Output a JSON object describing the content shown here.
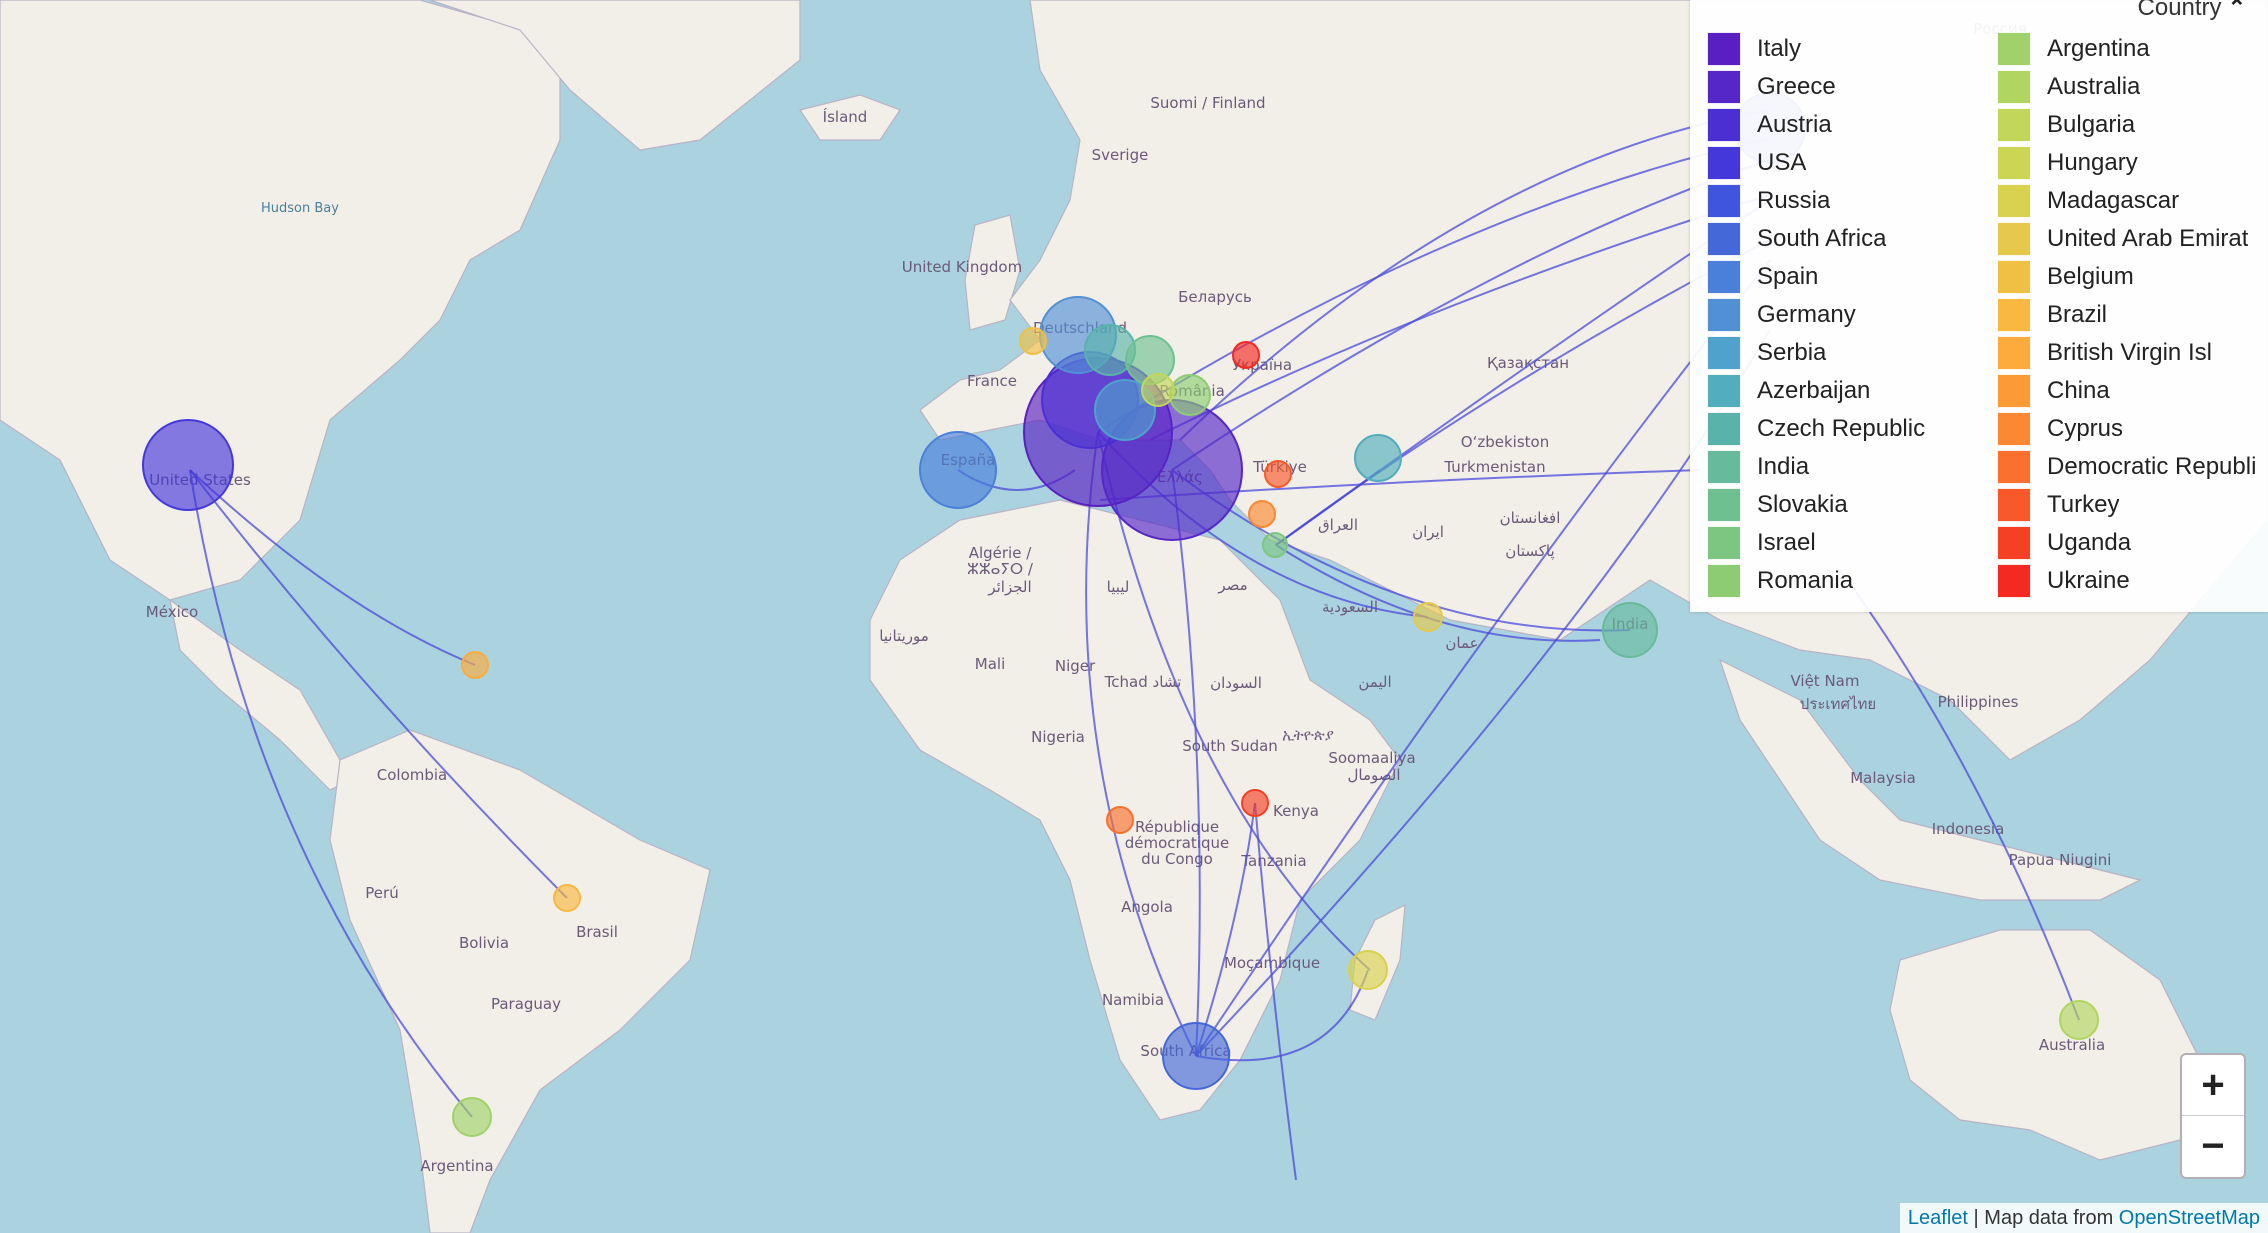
{
  "legend": {
    "title": "Country",
    "toggle_icon": "chevron-up-icon",
    "items": [
      {
        "label": "Italy",
        "color": "#5a1fc2"
      },
      {
        "label": "Greece",
        "color": "#5527c8"
      },
      {
        "label": "Austria",
        "color": "#4c2fd2"
      },
      {
        "label": "USA",
        "color": "#4538da"
      },
      {
        "label": "Russia",
        "color": "#4055dd"
      },
      {
        "label": "South Africa",
        "color": "#4468d8"
      },
      {
        "label": "Spain",
        "color": "#4a80da"
      },
      {
        "label": "Germany",
        "color": "#5290d6"
      },
      {
        "label": "Serbia",
        "color": "#4ea2cc"
      },
      {
        "label": "Azerbaijan",
        "color": "#52adbd"
      },
      {
        "label": "Czech Republic",
        "color": "#5ab3aa"
      },
      {
        "label": "India",
        "color": "#68ba9c"
      },
      {
        "label": "Slovakia",
        "color": "#6fc090"
      },
      {
        "label": "Israel",
        "color": "#7dc682"
      },
      {
        "label": "Romania",
        "color": "#8dcc72"
      },
      {
        "label": "Argentina",
        "color": "#a0d16a"
      },
      {
        "label": "Australia",
        "color": "#b0d560"
      },
      {
        "label": "Bulgaria",
        "color": "#c2d75a"
      },
      {
        "label": "Hungary",
        "color": "#ccd654"
      },
      {
        "label": "Madagascar",
        "color": "#d8d24e"
      },
      {
        "label": "United Arab Emirat",
        "color": "#e6c94a"
      },
      {
        "label": "Belgium",
        "color": "#f0c044"
      },
      {
        "label": "Brazil",
        "color": "#f8b842"
      },
      {
        "label": "British Virgin Isl",
        "color": "#fcac3c"
      },
      {
        "label": "China",
        "color": "#fc9a36"
      },
      {
        "label": "Cyprus",
        "color": "#fb8832"
      },
      {
        "label": "Democratic Republi",
        "color": "#fa702e"
      },
      {
        "label": "Turkey",
        "color": "#f8582a"
      },
      {
        "label": "Uganda",
        "color": "#f64026"
      },
      {
        "label": "Ukraine",
        "color": "#f42a22"
      }
    ]
  },
  "zoom": {
    "in_label": "+",
    "out_label": "−"
  },
  "attribution": {
    "leaflet": "Leaflet",
    "separator": " | Map data from ",
    "osm": "OpenStreetMap"
  },
  "places": [
    {
      "label": "Ísland"
    },
    {
      "label": "Suomi / Finland"
    },
    {
      "label": "Sverige"
    },
    {
      "label": "Hudson Bay"
    },
    {
      "label": "United Kingdom"
    },
    {
      "label": "Беларусь"
    },
    {
      "label": "Deutschland"
    },
    {
      "label": "Україна"
    },
    {
      "label": "France"
    },
    {
      "label": "Қазақстан"
    },
    {
      "label": "România"
    },
    {
      "label": "España"
    },
    {
      "label": "United States"
    },
    {
      "label": "Türkiye"
    },
    {
      "label": "O‘zbekiston"
    },
    {
      "label": "Turkmenistan"
    },
    {
      "label": "Ελλάς"
    },
    {
      "label": "افغانستان"
    },
    {
      "label": "العراق"
    },
    {
      "label": "ایران"
    },
    {
      "label": "پاکستان"
    },
    {
      "label": "Algérie /"
    },
    {
      "label": "ⵣⵣⴰⵢⵔ /"
    },
    {
      "label": "الجزائر"
    },
    {
      "label": "ليبيا"
    },
    {
      "label": "مصر"
    },
    {
      "label": "السعودية"
    },
    {
      "label": "México"
    },
    {
      "label": "موريتانيا"
    },
    {
      "label": "Mali"
    },
    {
      "label": "Niger"
    },
    {
      "label": "Tchad تشاد"
    },
    {
      "label": "السودان"
    },
    {
      "label": "اليمن"
    },
    {
      "label": "عمان"
    },
    {
      "label": "India"
    },
    {
      "label": "Việt Nam"
    },
    {
      "label": "Philippines"
    },
    {
      "label": "ประเทศไทย"
    },
    {
      "label": "Nigeria"
    },
    {
      "label": "South Sudan"
    },
    {
      "label": "ኢትዮጵያ"
    },
    {
      "label": "Soomaaliya"
    },
    {
      "label": "الصومال"
    },
    {
      "label": "Colombia"
    },
    {
      "label": "Malaysia"
    },
    {
      "label": "Kenya"
    },
    {
      "label": "République"
    },
    {
      "label": "démocratique"
    },
    {
      "label": "du Congo"
    },
    {
      "label": "Tanzania"
    },
    {
      "label": "Indonesia"
    },
    {
      "label": "Papua Niugini"
    },
    {
      "label": "Perú"
    },
    {
      "label": "Brasil"
    },
    {
      "label": "Angola"
    },
    {
      "label": "Bolivia"
    },
    {
      "label": "Moçambique"
    },
    {
      "label": "Namibia"
    },
    {
      "label": "Paraguay"
    },
    {
      "label": "South Africa"
    },
    {
      "label": "Australia"
    },
    {
      "label": "Argentina"
    },
    {
      "label": "Россия"
    }
  ],
  "markers": [
    {
      "country": "Italy",
      "color": "#5a1fc2"
    },
    {
      "country": "Greece",
      "color": "#5527c8"
    },
    {
      "country": "Austria",
      "color": "#4c2fd2"
    },
    {
      "country": "USA",
      "color": "#4538da"
    },
    {
      "country": "Russia",
      "color": "#4055dd"
    },
    {
      "country": "South Africa",
      "color": "#4468d8"
    },
    {
      "country": "Spain",
      "color": "#4a80da"
    },
    {
      "country": "Germany",
      "color": "#5290d6"
    },
    {
      "country": "Serbia",
      "color": "#4ea2cc"
    },
    {
      "country": "Azerbaijan",
      "color": "#52adbd"
    },
    {
      "country": "Czech Republic",
      "color": "#5ab3aa"
    },
    {
      "country": "India",
      "color": "#68ba9c"
    },
    {
      "country": "Slovakia",
      "color": "#6fc090"
    },
    {
      "country": "Israel",
      "color": "#7dc682"
    },
    {
      "country": "Romania",
      "color": "#8dcc72"
    },
    {
      "country": "Argentina",
      "color": "#a0d16a"
    },
    {
      "country": "Australia",
      "color": "#b0d560"
    },
    {
      "country": "Bulgaria",
      "color": "#c2d75a"
    },
    {
      "country": "Madagascar",
      "color": "#d8d24e"
    },
    {
      "country": "United Arab Emirat",
      "color": "#e6c94a"
    },
    {
      "country": "Belgium",
      "color": "#f0c044"
    },
    {
      "country": "Brazil",
      "color": "#f8b842"
    },
    {
      "country": "British Virgin Isl",
      "color": "#fcac3c"
    },
    {
      "country": "Cyprus",
      "color": "#fb8832"
    },
    {
      "country": "Democratic Republi",
      "color": "#fa702e"
    },
    {
      "country": "Turkey",
      "color": "#f8582a"
    },
    {
      "country": "Uganda",
      "color": "#f64026"
    },
    {
      "country": "Ukraine",
      "color": "#f42a22"
    }
  ],
  "colors": {
    "water": "#aad3df",
    "land": "#f2efe9",
    "border": "#9e9aa8",
    "route": "#4a4adb"
  }
}
